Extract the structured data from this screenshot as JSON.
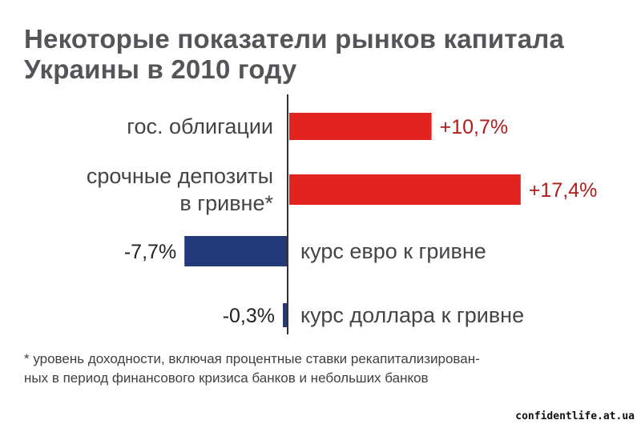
{
  "title_lines": [
    "Некоторые показатели рынков капитала",
    "Украины в 2010  году"
  ],
  "chart_data": {
    "type": "bar",
    "orientation": "horizontal",
    "title": "Некоторые показатели рынков капитала Украины в 2010  году",
    "categories": [
      [
        "гос. облигации"
      ],
      [
        "срочные депозиты",
        "в гривне*"
      ],
      [
        "курс евро к гривне"
      ],
      [
        "курс доллара к гривне"
      ]
    ],
    "values": [
      10.7,
      17.4,
      -7.7,
      -0.3
    ],
    "value_labels": [
      "+10,7%",
      "+17,4%",
      "-7,7%",
      "-0,3%"
    ],
    "colors": {
      "positive": "#e3231f",
      "negative": "#223a7a",
      "positive_label": "#b01c1c",
      "negative_label": "#222222"
    },
    "xlim": [
      -12,
      18
    ],
    "grid": false
  },
  "footnote_lines": [
    "* уровень доходности, включая процентные ставки рекапитализирован-",
    "ных в период финансового кризиса банков и небольших банков"
  ],
  "source": "confidentlife.at.ua"
}
